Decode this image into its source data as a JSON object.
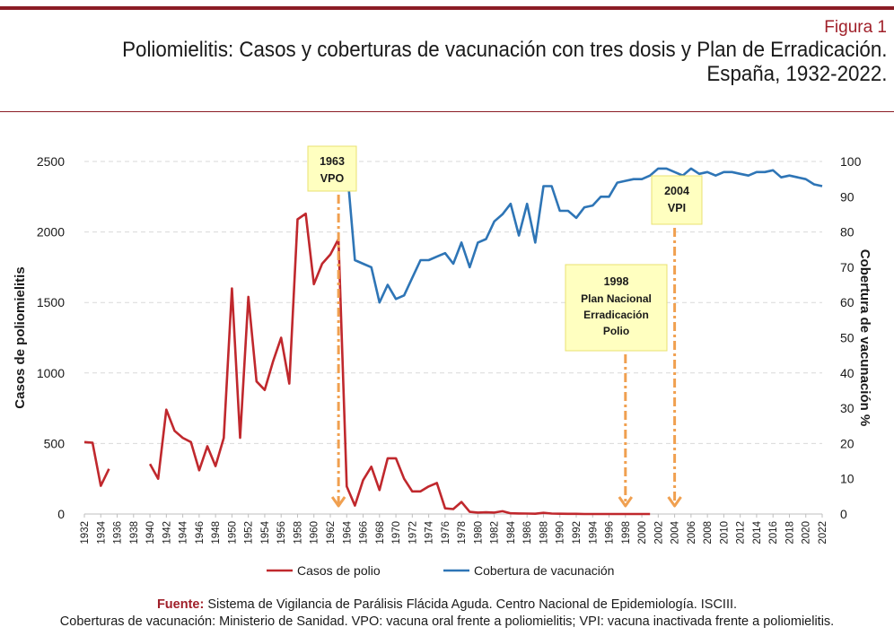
{
  "figure": {
    "label": "Figura 1",
    "title_line1": "Poliomielitis: Casos y coberturas de vacunación con tres dosis y Plan de Erradicación.",
    "title_line2": "España, 1932-2022."
  },
  "footer": {
    "source_label": "Fuente:",
    "source_text": " Sistema de Vigilancia de Parálisis Flácida Aguda. Centro Nacional de Epidemiología. ISCIII.",
    "line2": "Coberturas de vacunación: Ministerio de Sanidad. VPO: vacuna oral frente a poliomielitis; VPI: vacuna inactivada frente a poliomielitis."
  },
  "colors": {
    "polio": "#c0282d",
    "coverage": "#2e75b6",
    "annotation_arrow": "#f0a050",
    "annotation_box_fill": "#ffffc0",
    "annotation_box_border": "#e8e070",
    "grid": "#d9d9d9",
    "axis_text": "#1a1a1a"
  },
  "chart_data": {
    "type": "line",
    "xlabel": "",
    "ylabel_left": "Casos de poliomielitis",
    "ylabel_right": "Cobertura de vacunación %",
    "ylim_left": [
      0,
      2500
    ],
    "ylim_right": [
      0,
      100
    ],
    "yticks_left": [
      "0",
      "500",
      "1000",
      "1500",
      "2000",
      "2500"
    ],
    "yticks_right": [
      "0",
      "10",
      "20",
      "30",
      "40",
      "50",
      "60",
      "70",
      "80",
      "90",
      "100"
    ],
    "xlim": [
      1932,
      2022
    ],
    "xticks": [
      "1932",
      "1934",
      "1936",
      "1938",
      "1940",
      "1942",
      "1944",
      "1946",
      "1948",
      "1950",
      "1952",
      "1954",
      "1956",
      "1958",
      "1960",
      "1962",
      "1964",
      "1966",
      "1968",
      "1970",
      "1972",
      "1974",
      "1976",
      "1978",
      "1980",
      "1982",
      "1984",
      "1986",
      "1988",
      "1990",
      "1992",
      "1994",
      "1996",
      "1998",
      "2000",
      "2002",
      "2004",
      "2006",
      "2008",
      "2010",
      "2012",
      "2014",
      "2016",
      "2018",
      "2020",
      "2022"
    ],
    "grid": "horizontal",
    "legend_position": "bottom",
    "series": [
      {
        "name": "Casos de polio",
        "axis": "left",
        "color_key": "polio",
        "segments": [
          [
            [
              1932,
              510
            ],
            [
              1933,
              505
            ],
            [
              1934,
              200
            ],
            [
              1935,
              320
            ]
          ],
          [
            [
              1940,
              355
            ],
            [
              1941,
              250
            ],
            [
              1942,
              740
            ],
            [
              1943,
              590
            ],
            [
              1944,
              540
            ],
            [
              1945,
              510
            ],
            [
              1946,
              310
            ],
            [
              1947,
              480
            ],
            [
              1948,
              340
            ],
            [
              1949,
              540
            ],
            [
              1950,
              1600
            ],
            [
              1951,
              540
            ],
            [
              1952,
              1540
            ],
            [
              1953,
              940
            ],
            [
              1954,
              880
            ],
            [
              1955,
              1080
            ],
            [
              1956,
              1250
            ],
            [
              1957,
              925
            ],
            [
              1958,
              2090
            ],
            [
              1959,
              2130
            ],
            [
              1960,
              1630
            ],
            [
              1961,
              1775
            ],
            [
              1962,
              1840
            ],
            [
              1963,
              1950
            ],
            [
              1964,
              195
            ],
            [
              1965,
              60
            ],
            [
              1966,
              240
            ],
            [
              1967,
              335
            ],
            [
              1968,
              170
            ],
            [
              1969,
              395
            ],
            [
              1970,
              395
            ],
            [
              1971,
              250
            ],
            [
              1972,
              160
            ],
            [
              1973,
              160
            ],
            [
              1974,
              195
            ],
            [
              1975,
              220
            ],
            [
              1976,
              40
            ],
            [
              1977,
              35
            ],
            [
              1978,
              85
            ],
            [
              1979,
              15
            ],
            [
              1980,
              10
            ],
            [
              1981,
              12
            ],
            [
              1982,
              10
            ],
            [
              1983,
              20
            ],
            [
              1984,
              5
            ],
            [
              1985,
              4
            ],
            [
              1986,
              3
            ],
            [
              1987,
              2
            ],
            [
              1988,
              8
            ],
            [
              1989,
              3
            ],
            [
              1990,
              2
            ],
            [
              1991,
              1
            ],
            [
              1992,
              1
            ],
            [
              1993,
              0
            ],
            [
              1994,
              0
            ],
            [
              1995,
              0
            ],
            [
              1996,
              0
            ],
            [
              1997,
              0
            ],
            [
              1998,
              0
            ],
            [
              1999,
              0
            ],
            [
              2000,
              0
            ],
            [
              2001,
              0
            ]
          ]
        ]
      },
      {
        "name": "Cobertura de vacunación",
        "axis": "right",
        "color_key": "coverage",
        "segments": [
          [
            [
              1963.9,
              100
            ],
            [
              1964.3,
              91
            ],
            [
              1965,
              72
            ],
            [
              1966,
              71
            ],
            [
              1967,
              70
            ],
            [
              1968,
              60
            ],
            [
              1969,
              65
            ],
            [
              1970,
              61
            ],
            [
              1971,
              62
            ],
            [
              1972,
              67
            ],
            [
              1973,
              72
            ],
            [
              1974,
              72
            ],
            [
              1975,
              73
            ],
            [
              1976,
              74
            ],
            [
              1977,
              71
            ],
            [
              1978,
              77
            ],
            [
              1979,
              70
            ],
            [
              1980,
              77
            ],
            [
              1981,
              78
            ],
            [
              1982,
              83
            ],
            [
              1983,
              85
            ],
            [
              1984,
              88
            ],
            [
              1985,
              79
            ],
            [
              1986,
              88
            ],
            [
              1987,
              77
            ],
            [
              1988,
              93
            ],
            [
              1989,
              93
            ],
            [
              1990,
              86
            ],
            [
              1991,
              86
            ],
            [
              1992,
              84
            ],
            [
              1993,
              87
            ],
            [
              1994,
              87.5
            ],
            [
              1995,
              90
            ],
            [
              1996,
              90
            ],
            [
              1997,
              94
            ],
            [
              1998,
              94.5
            ],
            [
              1999,
              95
            ],
            [
              2000,
              95
            ],
            [
              2001,
              96
            ],
            [
              2002,
              98
            ],
            [
              2003,
              98
            ],
            [
              2004,
              97
            ],
            [
              2005,
              96
            ],
            [
              2006,
              98
            ],
            [
              2007,
              96.5
            ],
            [
              2008,
              97
            ],
            [
              2009,
              96
            ],
            [
              2010,
              97
            ],
            [
              2011,
              97
            ],
            [
              2012,
              96.5
            ],
            [
              2013,
              96
            ],
            [
              2014,
              97
            ],
            [
              2015,
              97
            ],
            [
              2016,
              97.5
            ],
            [
              2017,
              95.5
            ],
            [
              2018,
              96
            ],
            [
              2019,
              95.5
            ],
            [
              2020,
              95
            ],
            [
              2021,
              93.5
            ],
            [
              2022,
              93
            ]
          ]
        ]
      }
    ],
    "annotations": [
      {
        "year_label": "1963",
        "text": "VPO",
        "x": 1963
      },
      {
        "year_label": "1998",
        "text": "Plan Nacional Erradicación Polio",
        "x": 1998
      },
      {
        "year_label": "2004",
        "text": "VPI",
        "x": 2004
      }
    ]
  }
}
